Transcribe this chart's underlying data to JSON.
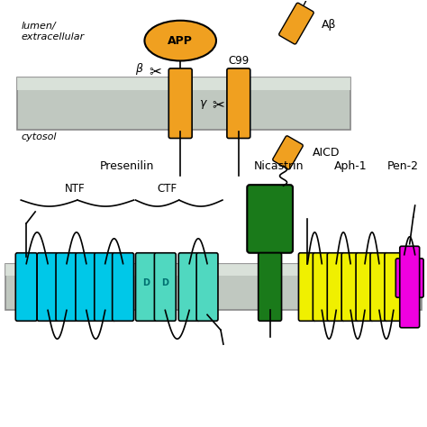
{
  "orange": "#F0A020",
  "cyan": "#00C8E8",
  "teal": "#50D8C0",
  "dark_green": "#1A7A1A",
  "yellow": "#F0F000",
  "magenta": "#F000E0",
  "mem_color": "#C0C8C0",
  "mem_light": "#D8E0D8",
  "labels": {
    "lumen": "lumen/\nextracellular",
    "cytosol": "cytosol",
    "APP": "APP",
    "C99": "C99",
    "Abeta": "Aβ",
    "AICD": "AICD",
    "Presenilin": "Presenilin",
    "NTF": "NTF",
    "CTF": "CTF",
    "Nicastrin": "Nicastrin",
    "Aph1": "Aph-1",
    "Pen2": "Pen-2",
    "beta": "β",
    "gamma": "γ",
    "D": "D"
  }
}
